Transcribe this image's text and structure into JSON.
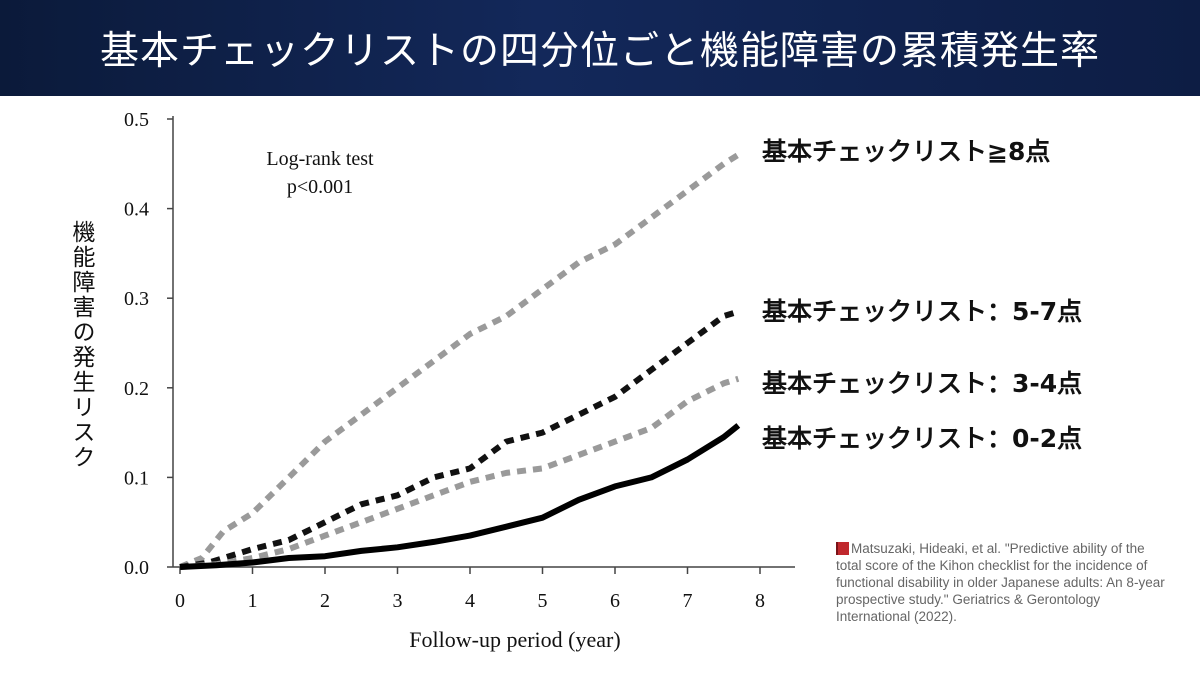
{
  "title": "基本チェックリストの四分位ごと機能障害の累積発生率",
  "chart_data": {
    "type": "line",
    "ylabel": "機能障害の発生リスク",
    "xlabel": "Follow-up period (year)",
    "xlim": [
      0,
      8
    ],
    "ylim": [
      0,
      0.5
    ],
    "x_ticks": [
      "0",
      "1",
      "2",
      "3",
      "4",
      "5",
      "6",
      "7",
      "8"
    ],
    "y_ticks": [
      "0.0",
      "0.1",
      "0.2",
      "0.3",
      "0.4",
      "0.5"
    ],
    "annotation": [
      "Log-rank test",
      "p<0.001"
    ],
    "grid": false,
    "series": [
      {
        "name": "基本チェックリスト≧8点",
        "color": "#9a9a9a",
        "style": "dashed",
        "x": [
          0,
          0.3,
          0.6,
          1.0,
          1.5,
          2.0,
          2.5,
          3.0,
          3.5,
          4.0,
          4.5,
          5.0,
          5.5,
          6.0,
          6.5,
          7.0,
          7.5,
          7.7
        ],
        "y": [
          0,
          0.01,
          0.04,
          0.06,
          0.1,
          0.14,
          0.17,
          0.2,
          0.23,
          0.26,
          0.28,
          0.31,
          0.34,
          0.36,
          0.39,
          0.42,
          0.45,
          0.46
        ]
      },
      {
        "name": "基本チェックリスト：5-7点",
        "color": "#111111",
        "style": "dashed",
        "x": [
          0,
          0.4,
          0.8,
          1.0,
          1.5,
          2.0,
          2.5,
          3.0,
          3.5,
          4.0,
          4.5,
          5.0,
          5.5,
          6.0,
          6.5,
          7.0,
          7.5,
          7.7
        ],
        "y": [
          0,
          0.005,
          0.015,
          0.02,
          0.03,
          0.05,
          0.07,
          0.08,
          0.1,
          0.11,
          0.14,
          0.15,
          0.17,
          0.19,
          0.22,
          0.25,
          0.28,
          0.285
        ]
      },
      {
        "name": "基本チェックリスト：3-4点",
        "color": "#9a9a9a",
        "style": "dashed",
        "x": [
          0,
          0.5,
          1.0,
          1.5,
          2.0,
          2.5,
          3.0,
          3.5,
          4.0,
          4.5,
          5.0,
          5.5,
          6.0,
          6.5,
          7.0,
          7.5,
          7.7
        ],
        "y": [
          0,
          0.003,
          0.01,
          0.02,
          0.035,
          0.05,
          0.065,
          0.08,
          0.095,
          0.105,
          0.11,
          0.125,
          0.14,
          0.155,
          0.185,
          0.205,
          0.21
        ]
      },
      {
        "name": "基本チェックリスト：0-2点",
        "color": "#000000",
        "style": "solid",
        "x": [
          0,
          0.5,
          1.0,
          1.5,
          2.0,
          2.5,
          3.0,
          3.5,
          4.0,
          4.5,
          5.0,
          5.5,
          6.0,
          6.5,
          7.0,
          7.5,
          7.7
        ],
        "y": [
          0,
          0.002,
          0.005,
          0.01,
          0.012,
          0.018,
          0.022,
          0.028,
          0.035,
          0.045,
          0.055,
          0.075,
          0.09,
          0.1,
          0.12,
          0.145,
          0.158
        ]
      }
    ]
  },
  "labels": {
    "s8": "基本チェックリスト≧8点",
    "s57": "基本チェックリスト：5-7点",
    "s34": "基本チェックリスト：3-4点",
    "s02": "基本チェックリスト：0-2点"
  },
  "citation": "Matsuzaki, Hideaki, et al. \"Predictive ability of the total score of the Kihon checklist for the incidence of functional disability in older Japanese adults: An 8-year prospective study.\" Geriatrics & Gerontology International (2022).",
  "citation_icon": "book-icon"
}
